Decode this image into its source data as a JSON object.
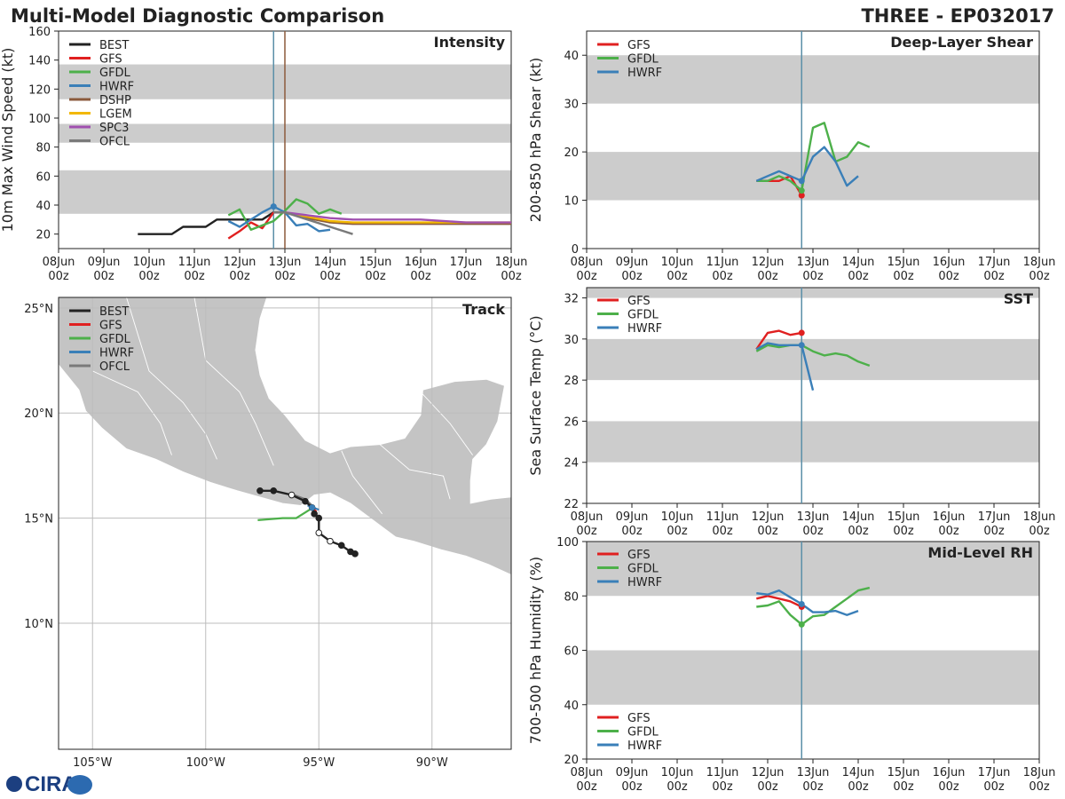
{
  "header": {
    "title": "Multi-Model Diagnostic Comparison",
    "storm": "THREE - EP032017"
  },
  "logo": {
    "text": "CIRA"
  },
  "chart_data": [
    {
      "id": "intensity",
      "type": "line",
      "title": "Intensity",
      "ylabel": "10m Max Wind Speed (kt)",
      "ylim": [
        10,
        160
      ],
      "yticks": [
        20,
        40,
        60,
        80,
        100,
        120,
        140,
        160
      ],
      "xlim": [
        0,
        10
      ],
      "xticks": [
        {
          "day": "08Jun",
          "hour": "00z"
        },
        {
          "day": "09Jun",
          "hour": "00z"
        },
        {
          "day": "10Jun",
          "hour": "00z"
        },
        {
          "day": "11Jun",
          "hour": "00z"
        },
        {
          "day": "12Jun",
          "hour": "00z"
        },
        {
          "day": "13Jun",
          "hour": "00z"
        },
        {
          "day": "14Jun",
          "hour": "00z"
        },
        {
          "day": "15Jun",
          "hour": "00z"
        },
        {
          "day": "16Jun",
          "hour": "00z"
        },
        {
          "day": "17Jun",
          "hour": "00z"
        },
        {
          "day": "18Jun",
          "hour": "00z"
        }
      ],
      "bands": [
        [
          34,
          64
        ],
        [
          83,
          96
        ],
        [
          113,
          137
        ]
      ],
      "vlines": [
        {
          "x": 4.75,
          "color": "#5b8fa8"
        },
        {
          "x": 5.0,
          "color": "#8b5a3c"
        }
      ],
      "series": [
        {
          "name": "BEST",
          "color": "#222222",
          "x": [
            1.75,
            2.0,
            2.25,
            2.5,
            2.75,
            3.0,
            3.25,
            3.5,
            3.75,
            4.0,
            4.25,
            4.5,
            4.75
          ],
          "y": [
            20,
            20,
            20,
            20,
            25,
            25,
            25,
            30,
            30,
            30,
            30,
            30,
            35
          ]
        },
        {
          "name": "GFS",
          "color": "#e02020",
          "x": [
            3.75,
            4.0,
            4.25,
            4.5,
            4.75
          ],
          "y": [
            17,
            22,
            28,
            24,
            35
          ]
        },
        {
          "name": "GFDL",
          "color": "#4db04a",
          "x": [
            3.75,
            4.0,
            4.25,
            4.5,
            4.75,
            5.0,
            5.25,
            5.5,
            5.75,
            6.0,
            6.25
          ],
          "y": [
            33,
            37,
            23,
            26,
            29,
            36,
            44,
            41,
            34,
            37,
            34
          ]
        },
        {
          "name": "HWRF",
          "color": "#3a7fb8",
          "x": [
            3.75,
            4.0,
            4.25,
            4.5,
            4.75,
            5.0,
            5.25,
            5.5,
            5.75,
            6.0
          ],
          "y": [
            29,
            25,
            30,
            35,
            39,
            35,
            26,
            27,
            22,
            23
          ]
        },
        {
          "name": "DSHP",
          "color": "#8b5a3c",
          "x": [
            4.75,
            5.0,
            5.5,
            6.0,
            6.5,
            7.0,
            8.0,
            9.0,
            10.0
          ],
          "y": [
            35,
            35,
            31,
            28,
            27,
            27,
            27,
            27,
            27
          ]
        },
        {
          "name": "LGEM",
          "color": "#f2b700",
          "x": [
            4.75,
            5.0,
            5.5,
            6.0,
            6.5,
            7.0,
            8.0,
            9.0,
            10.0
          ],
          "y": [
            35,
            35,
            32,
            29,
            28,
            28,
            28,
            28,
            28
          ]
        },
        {
          "name": "SPC3",
          "color": "#a050b0",
          "x": [
            4.75,
            5.0,
            5.5,
            6.0,
            6.5,
            7.0,
            8.0,
            9.0,
            10.0
          ],
          "y": [
            35,
            35,
            33,
            31,
            30,
            30,
            30,
            28,
            28
          ]
        },
        {
          "name": "OFCL",
          "color": "#7a7a7a",
          "x": [
            4.75,
            5.0,
            5.5,
            6.0,
            6.5
          ],
          "y": [
            35,
            35,
            30,
            25,
            20
          ]
        }
      ],
      "markers": [
        {
          "series": "HWRF",
          "x": 4.75,
          "y": 39,
          "color": "#3a7fb8"
        }
      ]
    },
    {
      "id": "shear",
      "type": "line",
      "title": "Deep-Layer Shear",
      "ylabel": "200-850 hPa Shear (kt)",
      "ylim": [
        0,
        45
      ],
      "yticks": [
        0,
        10,
        20,
        30,
        40
      ],
      "xlim": [
        0,
        10
      ],
      "xticks": [
        {
          "day": "08Jun",
          "hour": "00z"
        },
        {
          "day": "09Jun",
          "hour": "00z"
        },
        {
          "day": "10Jun",
          "hour": "00z"
        },
        {
          "day": "11Jun",
          "hour": "00z"
        },
        {
          "day": "12Jun",
          "hour": "00z"
        },
        {
          "day": "13Jun",
          "hour": "00z"
        },
        {
          "day": "14Jun",
          "hour": "00z"
        },
        {
          "day": "15Jun",
          "hour": "00z"
        },
        {
          "day": "16Jun",
          "hour": "00z"
        },
        {
          "day": "17Jun",
          "hour": "00z"
        },
        {
          "day": "18Jun",
          "hour": "00z"
        }
      ],
      "bands": [
        [
          10,
          20
        ],
        [
          30,
          40
        ]
      ],
      "vlines": [
        {
          "x": 4.75,
          "color": "#5b8fa8"
        }
      ],
      "series": [
        {
          "name": "GFS",
          "color": "#e02020",
          "x": [
            3.75,
            4.0,
            4.25,
            4.5,
            4.75
          ],
          "y": [
            14,
            14,
            14,
            15,
            11
          ]
        },
        {
          "name": "GFDL",
          "color": "#4db04a",
          "x": [
            3.75,
            4.0,
            4.25,
            4.5,
            4.75,
            5.0,
            5.25,
            5.5,
            5.75,
            6.0,
            6.25
          ],
          "y": [
            14,
            14,
            15,
            14,
            12,
            25,
            26,
            18,
            19,
            22,
            21
          ]
        },
        {
          "name": "HWRF",
          "color": "#3a7fb8",
          "x": [
            3.75,
            4.0,
            4.25,
            4.5,
            4.75,
            5.0,
            5.25,
            5.5,
            5.75,
            6.0
          ],
          "y": [
            14,
            15,
            16,
            15,
            14,
            19,
            21,
            18,
            13,
            15
          ]
        }
      ],
      "markers": [
        {
          "series": "GFS",
          "x": 4.75,
          "y": 11,
          "color": "#e02020"
        },
        {
          "series": "GFDL",
          "x": 4.75,
          "y": 12,
          "color": "#4db04a"
        },
        {
          "series": "HWRF",
          "x": 4.75,
          "y": 14,
          "color": "#3a7fb8"
        }
      ]
    },
    {
      "id": "sst",
      "type": "line",
      "title": "SST",
      "ylabel": "Sea Surface Temp (°C)",
      "ylim": [
        22,
        32.5
      ],
      "yticks": [
        22,
        24,
        26,
        28,
        30,
        32
      ],
      "xlim": [
        0,
        10
      ],
      "xticks": [
        {
          "day": "08Jun",
          "hour": "00z"
        },
        {
          "day": "09Jun",
          "hour": "00z"
        },
        {
          "day": "10Jun",
          "hour": "00z"
        },
        {
          "day": "11Jun",
          "hour": "00z"
        },
        {
          "day": "12Jun",
          "hour": "00z"
        },
        {
          "day": "13Jun",
          "hour": "00z"
        },
        {
          "day": "14Jun",
          "hour": "00z"
        },
        {
          "day": "15Jun",
          "hour": "00z"
        },
        {
          "day": "16Jun",
          "hour": "00z"
        },
        {
          "day": "17Jun",
          "hour": "00z"
        },
        {
          "day": "18Jun",
          "hour": "00z"
        }
      ],
      "bands": [
        [
          24,
          26
        ],
        [
          28,
          30
        ],
        [
          32,
          32.5
        ]
      ],
      "vlines": [
        {
          "x": 4.75,
          "color": "#5b8fa8"
        }
      ],
      "series": [
        {
          "name": "GFS",
          "color": "#e02020",
          "x": [
            3.75,
            4.0,
            4.25,
            4.5,
            4.75
          ],
          "y": [
            29.5,
            30.3,
            30.4,
            30.2,
            30.3
          ]
        },
        {
          "name": "GFDL",
          "color": "#4db04a",
          "x": [
            3.75,
            4.0,
            4.25,
            4.5,
            4.75,
            5.0,
            5.25,
            5.5,
            5.75,
            6.0,
            6.25
          ],
          "y": [
            29.4,
            29.7,
            29.6,
            29.7,
            29.7,
            29.4,
            29.2,
            29.3,
            29.2,
            28.9,
            28.7
          ]
        },
        {
          "name": "HWRF",
          "color": "#3a7fb8",
          "x": [
            3.75,
            4.0,
            4.25,
            4.5,
            4.75,
            5.0
          ],
          "y": [
            29.5,
            29.8,
            29.7,
            29.7,
            29.7,
            27.5
          ]
        }
      ],
      "markers": [
        {
          "series": "GFS",
          "x": 4.75,
          "y": 30.3,
          "color": "#e02020"
        },
        {
          "series": "HWRF",
          "x": 4.75,
          "y": 29.7,
          "color": "#3a7fb8"
        }
      ]
    },
    {
      "id": "rh",
      "type": "line",
      "title": "Mid-Level RH",
      "ylabel": "700-500 hPa Humidity (%)",
      "ylim": [
        20,
        100
      ],
      "yticks": [
        20,
        40,
        60,
        80,
        100
      ],
      "xlim": [
        0,
        10
      ],
      "xticks": [
        {
          "day": "08Jun",
          "hour": "00z"
        },
        {
          "day": "09Jun",
          "hour": "00z"
        },
        {
          "day": "10Jun",
          "hour": "00z"
        },
        {
          "day": "11Jun",
          "hour": "00z"
        },
        {
          "day": "12Jun",
          "hour": "00z"
        },
        {
          "day": "13Jun",
          "hour": "00z"
        },
        {
          "day": "14Jun",
          "hour": "00z"
        },
        {
          "day": "15Jun",
          "hour": "00z"
        },
        {
          "day": "16Jun",
          "hour": "00z"
        },
        {
          "day": "17Jun",
          "hour": "00z"
        },
        {
          "day": "18Jun",
          "hour": "00z"
        }
      ],
      "bands": [
        [
          40,
          60
        ],
        [
          80,
          100
        ]
      ],
      "vlines": [
        {
          "x": 4.75,
          "color": "#5b8fa8"
        }
      ],
      "series": [
        {
          "name": "GFS",
          "color": "#e02020",
          "x": [
            3.75,
            4.0,
            4.25,
            4.5,
            4.75
          ],
          "y": [
            79,
            80,
            79,
            78,
            76
          ]
        },
        {
          "name": "GFDL",
          "color": "#4db04a",
          "x": [
            3.75,
            4.0,
            4.25,
            4.5,
            4.75,
            5.0,
            5.25,
            5.5,
            5.75,
            6.0,
            6.25
          ],
          "y": [
            76,
            76.5,
            78,
            73,
            69.5,
            72.5,
            73,
            76,
            79,
            82,
            83
          ]
        },
        {
          "name": "HWRF",
          "color": "#3a7fb8",
          "x": [
            3.75,
            4.0,
            4.25,
            4.5,
            4.75,
            5.0,
            5.25,
            5.5,
            5.75,
            6.0
          ],
          "y": [
            81,
            80.5,
            82,
            79.5,
            77,
            74,
            74,
            74.5,
            73,
            74.5
          ]
        }
      ],
      "markers": [
        {
          "series": "GFDL",
          "x": 4.75,
          "y": 69.5,
          "color": "#4db04a"
        },
        {
          "series": "GFS",
          "x": 4.75,
          "y": 76,
          "color": "#e02020"
        },
        {
          "series": "HWRF",
          "x": 4.75,
          "y": 77,
          "color": "#3a7fb8"
        }
      ]
    },
    {
      "id": "track",
      "type": "scatter",
      "title": "Track",
      "xlim": [
        -106.5,
        -86.5
      ],
      "ylim": [
        4,
        25.5
      ],
      "xticks": [
        {
          "v": -105,
          "label": "105°W"
        },
        {
          "v": -100,
          "label": "100°W"
        },
        {
          "v": -95,
          "label": "95°W"
        },
        {
          "v": -90,
          "label": "90°W"
        }
      ],
      "yticks": [
        {
          "v": 10,
          "label": "10°N"
        },
        {
          "v": 15,
          "label": "15°N"
        },
        {
          "v": 20,
          "label": "20°N"
        },
        {
          "v": 25,
          "label": "25°N"
        }
      ],
      "series": [
        {
          "name": "BEST",
          "color": "#222222",
          "lon": [
            -93.4,
            -93.6,
            -94.0,
            -94.5,
            -95.0,
            -95.0,
            -95.2,
            -95.3,
            -95.6,
            -96.2,
            -97.0,
            -97.6
          ],
          "lat": [
            13.3,
            13.4,
            13.7,
            13.9,
            14.3,
            15.0,
            15.2,
            15.5,
            15.8,
            16.1,
            16.3,
            16.3
          ],
          "filled": [
            true,
            true,
            true,
            false,
            false,
            true,
            true,
            true,
            true,
            false,
            true,
            true
          ]
        },
        {
          "name": "GFS",
          "color": "#e02020",
          "lon": [
            -95.3,
            -95.1
          ],
          "lat": [
            15.5,
            15.3
          ],
          "filled": []
        },
        {
          "name": "GFDL",
          "color": "#4db04a",
          "lon": [
            -97.7,
            -96.6,
            -96.0,
            -95.4
          ],
          "lat": [
            14.9,
            15.0,
            15.0,
            15.4
          ],
          "filled": []
        },
        {
          "name": "HWRF",
          "color": "#3a7fb8",
          "lon": [
            -95.5,
            -95.0
          ],
          "lat": [
            15.6,
            15.4
          ],
          "filled": []
        },
        {
          "name": "OFCL",
          "color": "#7a7a7a",
          "lon": [
            -96.1,
            -95.6,
            -95.2
          ],
          "lat": [
            16.1,
            15.9,
            15.5
          ],
          "filled": []
        }
      ]
    }
  ]
}
